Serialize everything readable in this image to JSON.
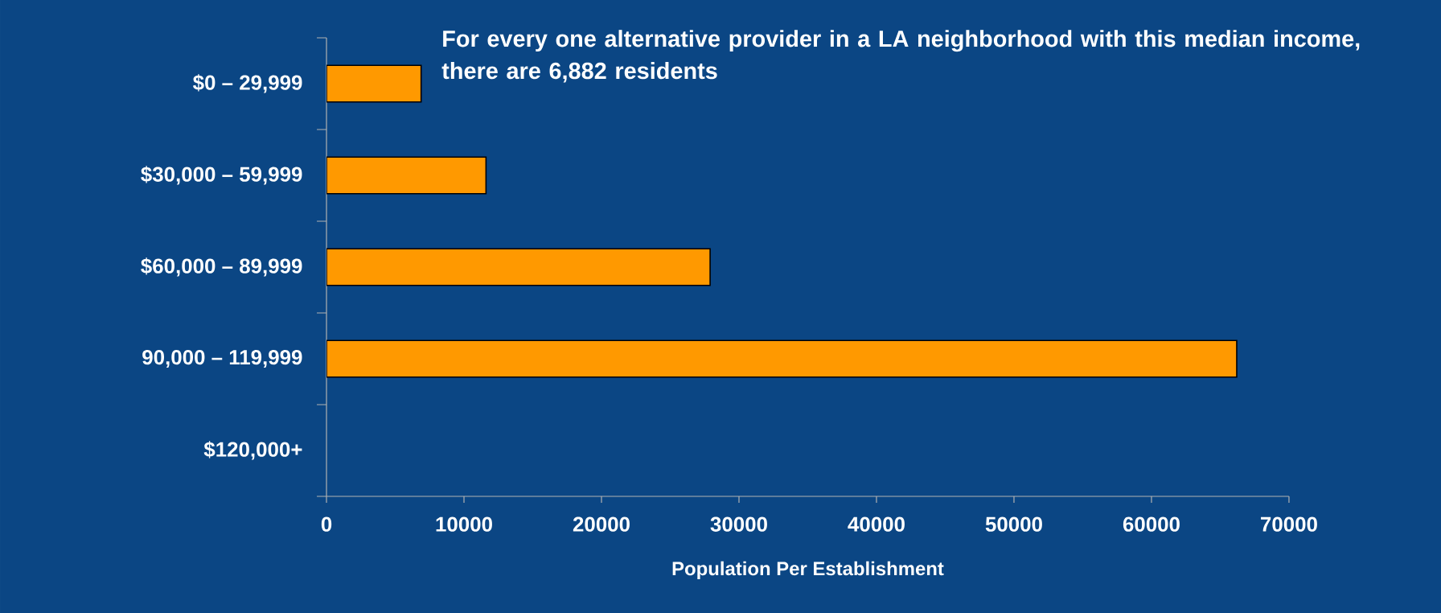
{
  "chart_data": {
    "type": "bar",
    "orientation": "horizontal",
    "categories": [
      "$0 – 29,999",
      "$30,000 – 59,999",
      "$60,000 – 89,999",
      "90,000 – 119,999",
      "$120,000+"
    ],
    "values": [
      6882,
      11600,
      27900,
      66200,
      null
    ],
    "color": "#ff9900",
    "xlim": [
      0,
      70000
    ],
    "xticks": [
      0,
      10000,
      20000,
      30000,
      40000,
      50000,
      60000,
      70000
    ],
    "xlabel": "Population Per Establishment",
    "annotations": [
      "For every one alternative provider in a LA neighborhood with this median income, there are 6,882 residents"
    ],
    "grid": false
  }
}
